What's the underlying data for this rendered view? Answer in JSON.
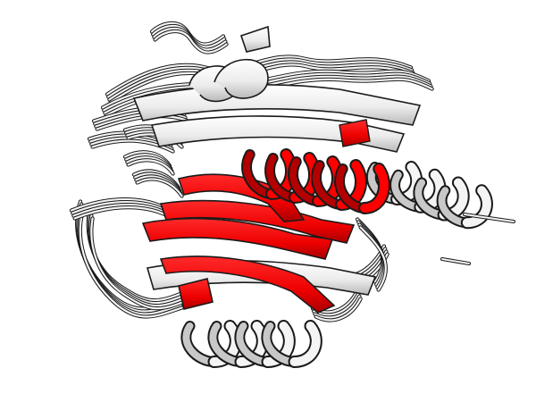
{
  "figure": {
    "subject": "protein-structure-ensemble-cartoon",
    "background_color": "#ffffff",
    "colors": {
      "backbone_fill": "#f4f4f4",
      "backbone_shade": "#c8c8c8",
      "outline": "#1a1a1a",
      "highlight_red": "#ff0000",
      "highlight_dark_red": "#b30000"
    },
    "elements": [
      "coil-bundle",
      "beta-sheet",
      "top-helix",
      "red-helix",
      "right-helix",
      "bottom-helix",
      "red-strands"
    ]
  }
}
